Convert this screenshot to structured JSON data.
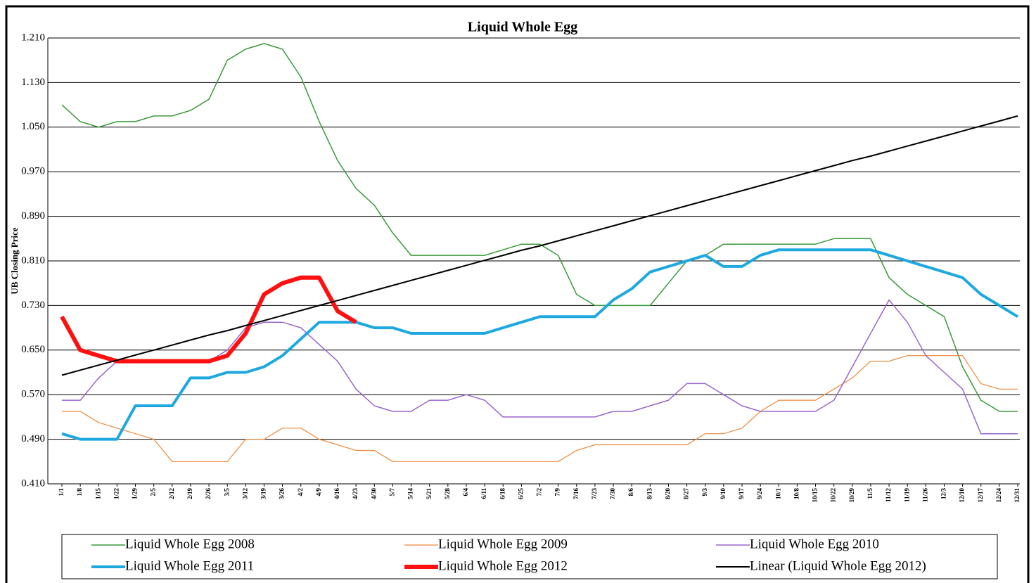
{
  "chart_data": {
    "type": "line",
    "title": "Liquid  Whole Egg",
    "y_label": "UB Closing Price",
    "categories": [
      "1/1",
      "1/8",
      "1/15",
      "1/22",
      "1/29",
      "2/5",
      "2/12",
      "2/19",
      "2/26",
      "3/5",
      "3/12",
      "3/19",
      "3/26",
      "4/2",
      "4/9",
      "4/16",
      "4/23",
      "4/30",
      "5/7",
      "5/14",
      "5/21",
      "5/28",
      "6/4",
      "6/11",
      "6/18",
      "6/25",
      "7/2",
      "7/9",
      "7/16",
      "7/23",
      "7/30",
      "8/6",
      "8/13",
      "8/20",
      "8/27",
      "9/3",
      "9/10",
      "9/17",
      "9/24",
      "10/1",
      "10/8",
      "10/15",
      "10/22",
      "10/29",
      "11/5",
      "11/12",
      "11/19",
      "11/26",
      "12/3",
      "12/10",
      "12/17",
      "12/24",
      "12/31"
    ],
    "ylim": [
      0.41,
      1.21
    ],
    "yticks": [
      {
        "value": 0.41,
        "label": "0.410"
      },
      {
        "value": 0.49,
        "label": "0.490"
      },
      {
        "value": 0.57,
        "label": "0.570"
      },
      {
        "value": 0.65,
        "label": "0.650"
      },
      {
        "value": 0.73,
        "label": "0.730"
      },
      {
        "value": 0.81,
        "label": "0.810"
      },
      {
        "value": 0.89,
        "label": "0.890"
      },
      {
        "value": 0.97,
        "label": "0.970"
      },
      {
        "value": 1.05,
        "label": "1.050"
      },
      {
        "value": 1.13,
        "label": "1.130"
      },
      {
        "value": 1.21,
        "label": "1.210"
      }
    ],
    "grid": true,
    "legend": "bottom",
    "series": [
      {
        "name": "Liquid Whole Egg 2008",
        "color": "#3a9a3a",
        "width": 1.5,
        "values": [
          1.09,
          1.06,
          1.05,
          1.06,
          1.06,
          1.07,
          1.07,
          1.08,
          1.1,
          1.17,
          1.19,
          1.2,
          1.19,
          1.14,
          1.06,
          0.99,
          0.94,
          0.91,
          0.86,
          0.82,
          0.82,
          0.82,
          0.82,
          0.82,
          0.83,
          0.84,
          0.84,
          0.82,
          0.75,
          0.73,
          0.73,
          0.73,
          0.73,
          0.77,
          0.81,
          0.82,
          0.84,
          0.84,
          0.84,
          0.84,
          0.84,
          0.84,
          0.85,
          0.85,
          0.85,
          0.78,
          0.75,
          0.73,
          0.71,
          0.62,
          0.56,
          0.54,
          0.54
        ]
      },
      {
        "name": "Liquid Whole Egg 2009",
        "color": "#f0883a",
        "width": 1.2,
        "values": [
          0.54,
          0.54,
          0.52,
          0.51,
          0.5,
          0.49,
          0.45,
          0.45,
          0.45,
          0.45,
          0.49,
          0.49,
          0.51,
          0.51,
          0.49,
          0.48,
          0.47,
          0.47,
          0.45,
          0.45,
          0.45,
          0.45,
          0.45,
          0.45,
          0.45,
          0.45,
          0.45,
          0.45,
          0.47,
          0.48,
          0.48,
          0.48,
          0.48,
          0.48,
          0.48,
          0.5,
          0.5,
          0.51,
          0.54,
          0.56,
          0.56,
          0.56,
          0.58,
          0.6,
          0.63,
          0.63,
          0.64,
          0.64,
          0.64,
          0.64,
          0.59,
          0.58,
          0.58
        ]
      },
      {
        "name": "Liquid Whole Egg 2010",
        "color": "#9966cc",
        "width": 1.5,
        "values": [
          0.56,
          0.56,
          0.6,
          0.63,
          0.63,
          0.63,
          0.63,
          0.63,
          0.63,
          0.65,
          0.69,
          0.7,
          0.7,
          0.69,
          0.66,
          0.63,
          0.58,
          0.55,
          0.54,
          0.54,
          0.56,
          0.56,
          0.57,
          0.56,
          0.53,
          0.53,
          0.53,
          0.53,
          0.53,
          0.53,
          0.54,
          0.54,
          0.55,
          0.56,
          0.59,
          0.59,
          0.57,
          0.55,
          0.54,
          0.54,
          0.54,
          0.54,
          0.56,
          0.62,
          0.68,
          0.74,
          0.7,
          0.64,
          0.61,
          0.58,
          0.5,
          0.5,
          0.5
        ]
      },
      {
        "name": "Liquid Whole Egg 2011",
        "color": "#1ea8e0",
        "width": 4,
        "values": [
          0.5,
          0.49,
          0.49,
          0.49,
          0.55,
          0.55,
          0.55,
          0.6,
          0.6,
          0.61,
          0.61,
          0.62,
          0.64,
          0.67,
          0.7,
          0.7,
          0.7,
          0.69,
          0.69,
          0.68,
          0.68,
          0.68,
          0.68,
          0.68,
          0.69,
          0.7,
          0.71,
          0.71,
          0.71,
          0.71,
          0.74,
          0.76,
          0.79,
          0.8,
          0.81,
          0.82,
          0.8,
          0.8,
          0.82,
          0.83,
          0.83,
          0.83,
          0.83,
          0.83,
          0.83,
          0.82,
          0.81,
          0.8,
          0.79,
          0.78,
          0.75,
          0.73,
          0.71
        ]
      },
      {
        "name": "Liquid Whole Egg 2012",
        "color": "#ff1010",
        "width": 6,
        "values": [
          0.71,
          0.65,
          0.64,
          0.63,
          0.63,
          0.63,
          0.63,
          0.63,
          0.63,
          0.64,
          0.68,
          0.75,
          0.77,
          0.78,
          0.78,
          0.72,
          0.7,
          null,
          null,
          null,
          null,
          null,
          null,
          null,
          null,
          null,
          null,
          null,
          null,
          null,
          null,
          null,
          null,
          null,
          null,
          null,
          null,
          null,
          null,
          null,
          null,
          null,
          null,
          null,
          null,
          null,
          null,
          null,
          null,
          null,
          null,
          null,
          null
        ]
      },
      {
        "name": "Linear (Liquid Whole Egg 2012)",
        "color": "#000000",
        "width": 2,
        "values": [
          0.605,
          0.614,
          0.623,
          0.632,
          0.641,
          0.65,
          0.659,
          0.668,
          0.677,
          0.685,
          0.694,
          0.703,
          0.712,
          0.721,
          0.73,
          0.739,
          0.748,
          0.757,
          0.766,
          0.775,
          0.784,
          0.793,
          0.802,
          0.811,
          0.82,
          0.829,
          0.837,
          0.846,
          0.855,
          0.864,
          0.873,
          0.882,
          0.891,
          0.9,
          0.909,
          0.918,
          0.927,
          0.936,
          0.945,
          0.954,
          0.963,
          0.972,
          0.981,
          0.99,
          0.998,
          1.007,
          1.016,
          1.025,
          1.034,
          1.043,
          1.052,
          1.061,
          1.07
        ]
      }
    ]
  }
}
